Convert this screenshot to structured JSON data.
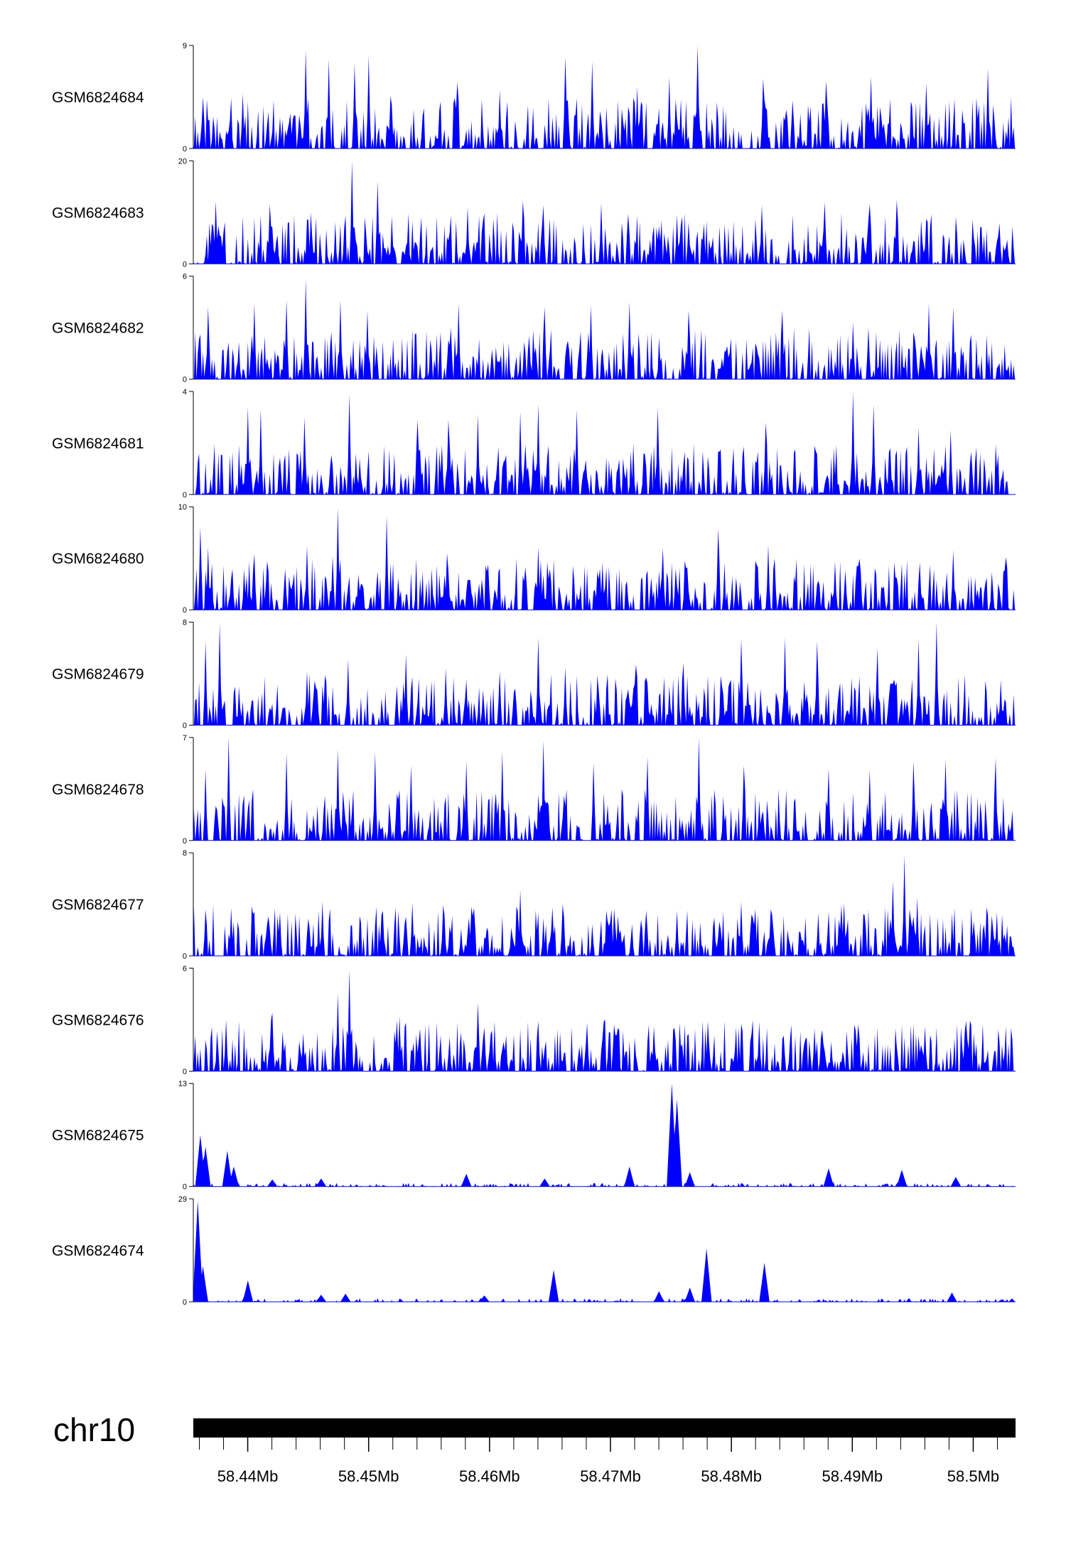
{
  "chart_data": {
    "type": "area",
    "title": "",
    "xlabel": "",
    "ylabel": "",
    "chromosome": "chr10",
    "x_unit": "Mb",
    "xlim": [
      58.4355,
      58.5035
    ],
    "x_ticks": [
      58.44,
      58.45,
      58.46,
      58.47,
      58.48,
      58.49,
      58.5
    ],
    "x_tick_labels": [
      "58.44Mb",
      "58.45Mb",
      "58.46Mb",
      "58.47Mb",
      "58.48Mb",
      "58.49Mb",
      "58.5Mb"
    ],
    "minor_tick_step": 0.002,
    "fill_color": "#0000ff",
    "grid": false,
    "tracks": [
      {
        "name": "GSM6824684",
        "ymax": 9,
        "y_ticks": [
          "0",
          "9"
        ],
        "peaks": [
          [
            58.4362,
            4.5
          ],
          [
            58.4395,
            4.8
          ],
          [
            58.4447,
            8.6
          ],
          [
            58.4467,
            7.8
          ],
          [
            58.4488,
            7.4
          ],
          [
            58.4499,
            8.1
          ],
          [
            58.4518,
            4.6
          ],
          [
            58.4573,
            5.8
          ],
          [
            58.4608,
            5.1
          ],
          [
            58.4662,
            8.0
          ],
          [
            58.4684,
            7.6
          ],
          [
            58.4722,
            5.4
          ],
          [
            58.4748,
            6.2
          ],
          [
            58.4772,
            9.0
          ],
          [
            58.4826,
            6.1
          ],
          [
            58.4878,
            5.9
          ],
          [
            58.4915,
            6.3
          ],
          [
            58.4961,
            5.7
          ],
          [
            58.5012,
            7.0
          ]
        ]
      },
      {
        "name": "GSM6824683",
        "ymax": 20,
        "y_ticks": [
          "0",
          "20"
        ],
        "peaks": [
          [
            58.4373,
            12.2
          ],
          [
            58.4418,
            11.6
          ],
          [
            58.4486,
            20.0
          ],
          [
            58.4507,
            16.0
          ],
          [
            58.4581,
            11.0
          ],
          [
            58.4627,
            12.2
          ],
          [
            58.4644,
            11.4
          ],
          [
            58.4692,
            11.8
          ],
          [
            58.4755,
            9.5
          ],
          [
            58.4825,
            11.4
          ],
          [
            58.4877,
            12.0
          ],
          [
            58.4914,
            11.6
          ],
          [
            58.4936,
            12.4
          ],
          [
            58.4961,
            8.7
          ],
          [
            58.5021,
            7.9
          ]
        ]
      },
      {
        "name": "GSM6824682",
        "ymax": 6,
        "y_ticks": [
          "0",
          "6"
        ],
        "peaks": [
          [
            58.4367,
            4.2
          ],
          [
            58.4405,
            4.4
          ],
          [
            58.4431,
            4.6
          ],
          [
            58.4447,
            5.8
          ],
          [
            58.4476,
            4.6
          ],
          [
            58.4498,
            4.0
          ],
          [
            58.4574,
            4.4
          ],
          [
            58.4645,
            4.2
          ],
          [
            58.4683,
            4.3
          ],
          [
            58.4715,
            4.5
          ],
          [
            58.4764,
            4.0
          ],
          [
            58.4842,
            4.0
          ],
          [
            58.49,
            3.3
          ],
          [
            58.4963,
            4.4
          ],
          [
            58.4983,
            4.2
          ]
        ]
      },
      {
        "name": "GSM6824681",
        "ymax": 4,
        "y_ticks": [
          "0",
          "4"
        ],
        "peaks": [
          [
            58.44,
            3.4
          ],
          [
            58.441,
            3.3
          ],
          [
            58.4446,
            3.0
          ],
          [
            58.4484,
            3.9
          ],
          [
            58.454,
            2.9
          ],
          [
            58.4565,
            2.9
          ],
          [
            58.459,
            3.1
          ],
          [
            58.4625,
            3.2
          ],
          [
            58.464,
            3.5
          ],
          [
            58.4672,
            3.3
          ],
          [
            58.4739,
            3.4
          ],
          [
            58.4828,
            2.8
          ],
          [
            58.49,
            4.0
          ],
          [
            58.4917,
            3.5
          ],
          [
            58.4954,
            2.6
          ],
          [
            58.4981,
            2.5
          ]
        ]
      },
      {
        "name": "GSM6824680",
        "ymax": 10,
        "y_ticks": [
          "0",
          "10"
        ],
        "peaks": [
          [
            58.436,
            8.0
          ],
          [
            58.4367,
            6.1
          ],
          [
            58.4405,
            5.4
          ],
          [
            58.4448,
            6.2
          ],
          [
            58.447,
            5.2
          ],
          [
            58.4474,
            9.9
          ],
          [
            58.4514,
            9.1
          ],
          [
            58.4564,
            5.5
          ],
          [
            58.4598,
            4.4
          ],
          [
            58.464,
            6.1
          ],
          [
            58.4693,
            4.6
          ],
          [
            58.4743,
            6.0
          ],
          [
            58.4788,
            7.9
          ],
          [
            58.483,
            6.3
          ],
          [
            58.4885,
            4.7
          ],
          [
            58.4955,
            4.6
          ],
          [
            58.4983,
            5.8
          ],
          [
            58.5026,
            5.1
          ]
        ]
      },
      {
        "name": "GSM6824679",
        "ymax": 8,
        "y_ticks": [
          "0",
          "8"
        ],
        "peaks": [
          [
            58.4365,
            6.5
          ],
          [
            58.4376,
            7.9
          ],
          [
            58.4448,
            4.2
          ],
          [
            58.4482,
            5.1
          ],
          [
            58.453,
            5.5
          ],
          [
            58.4563,
            4.4
          ],
          [
            58.4608,
            4.2
          ],
          [
            58.464,
            6.8
          ],
          [
            58.4662,
            4.5
          ],
          [
            58.472,
            4.7
          ],
          [
            58.476,
            4.8
          ],
          [
            58.4808,
            6.7
          ],
          [
            58.4844,
            6.8
          ],
          [
            58.487,
            6.5
          ],
          [
            58.492,
            6.0
          ],
          [
            58.4954,
            6.7
          ],
          [
            58.4969,
            8.0
          ],
          [
            58.5022,
            3.4
          ]
        ]
      },
      {
        "name": "GSM6824678",
        "ymax": 7,
        "y_ticks": [
          "0",
          "7"
        ],
        "peaks": [
          [
            58.4365,
            4.8
          ],
          [
            58.4384,
            7.0
          ],
          [
            58.4432,
            5.9
          ],
          [
            58.4474,
            6.2
          ],
          [
            58.4505,
            6.0
          ],
          [
            58.4535,
            5.1
          ],
          [
            58.458,
            5.4
          ],
          [
            58.461,
            6.0
          ],
          [
            58.4644,
            6.8
          ],
          [
            58.4685,
            5.3
          ],
          [
            58.473,
            5.7
          ],
          [
            58.4773,
            7.0
          ],
          [
            58.481,
            5.1
          ],
          [
            58.488,
            4.9
          ],
          [
            58.4914,
            4.8
          ],
          [
            58.495,
            5.4
          ],
          [
            58.4977,
            5.5
          ],
          [
            58.5018,
            5.6
          ]
        ]
      },
      {
        "name": "GSM6824677",
        "ymax": 8,
        "y_ticks": [
          "0",
          "8"
        ],
        "peaks": [
          [
            58.4365,
            3.6
          ],
          [
            58.4386,
            3.7
          ],
          [
            58.4461,
            4.2
          ],
          [
            58.4511,
            3.5
          ],
          [
            58.4536,
            4.1
          ],
          [
            58.4585,
            3.8
          ],
          [
            58.4625,
            5.1
          ],
          [
            58.466,
            4.0
          ],
          [
            58.4706,
            3.1
          ],
          [
            58.4755,
            3.5
          ],
          [
            58.4808,
            4.2
          ],
          [
            58.4893,
            4.1
          ],
          [
            58.4933,
            5.8
          ],
          [
            58.4943,
            7.8
          ],
          [
            58.4953,
            4.5
          ],
          [
            58.5,
            2.7
          ]
        ]
      },
      {
        "name": "GSM6824676",
        "ymax": 6,
        "y_ticks": [
          "0",
          "6"
        ],
        "peaks": [
          [
            58.4382,
            3.0
          ],
          [
            58.442,
            3.4
          ],
          [
            58.4445,
            2.2
          ],
          [
            58.4474,
            4.5
          ],
          [
            58.4484,
            5.9
          ],
          [
            58.4525,
            3.2
          ],
          [
            58.459,
            4.0
          ],
          [
            58.464,
            2.9
          ],
          [
            58.468,
            2.8
          ],
          [
            58.4735,
            2.6
          ],
          [
            58.478,
            2.9
          ],
          [
            58.4823,
            2.6
          ],
          [
            58.4902,
            2.4
          ],
          [
            58.496,
            2.6
          ],
          [
            58.4993,
            2.0
          ]
        ]
      },
      {
        "name": "GSM6824675",
        "ymax": 13,
        "y_ticks": [
          "0",
          "13"
        ],
        "peaks": [
          [
            58.436,
            6.5
          ],
          [
            58.4365,
            5.0
          ],
          [
            58.4383,
            4.5
          ],
          [
            58.4388,
            2.5
          ],
          [
            58.442,
            0.9
          ],
          [
            58.446,
            1.0
          ],
          [
            58.458,
            1.6
          ],
          [
            58.4645,
            1.0
          ],
          [
            58.4715,
            2.5
          ],
          [
            58.475,
            13.0
          ],
          [
            58.4755,
            11.0
          ],
          [
            58.4765,
            1.8
          ],
          [
            58.488,
            2.3
          ],
          [
            58.494,
            2.1
          ],
          [
            58.4985,
            1.2
          ]
        ]
      },
      {
        "name": "GSM6824674",
        "ymax": 29,
        "y_ticks": [
          "0",
          "29"
        ],
        "peaks": [
          [
            58.4358,
            28.5
          ],
          [
            58.4362,
            10.0
          ],
          [
            58.44,
            6.0
          ],
          [
            58.446,
            2.0
          ],
          [
            58.448,
            2.3
          ],
          [
            58.4595,
            1.8
          ],
          [
            58.4652,
            9.0
          ],
          [
            58.474,
            3.0
          ],
          [
            58.4765,
            4.0
          ],
          [
            58.4779,
            15.0
          ],
          [
            58.4827,
            11.0
          ],
          [
            58.4982,
            2.6
          ]
        ]
      }
    ]
  }
}
